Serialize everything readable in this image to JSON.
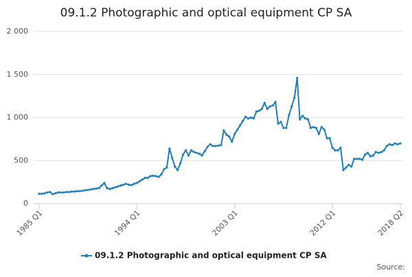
{
  "chart_data": {
    "type": "line",
    "title": "09.1.2 Photographic and optical equipment CP SA",
    "source": "Source:",
    "categories": [
      "1985 Q1",
      null,
      null,
      null,
      null,
      null,
      null,
      null,
      null,
      null,
      null,
      null,
      null,
      null,
      null,
      null,
      null,
      null,
      null,
      null,
      null,
      null,
      null,
      null,
      null,
      null,
      null,
      null,
      null,
      null,
      null,
      null,
      null,
      null,
      null,
      null,
      "1994 Q1",
      null,
      null,
      null,
      null,
      null,
      null,
      null,
      null,
      null,
      null,
      null,
      null,
      null,
      null,
      null,
      null,
      null,
      null,
      null,
      null,
      null,
      null,
      null,
      null,
      null,
      null,
      null,
      null,
      null,
      null,
      null,
      null,
      null,
      null,
      null,
      "2003 Q1",
      null,
      null,
      null,
      null,
      null,
      null,
      null,
      null,
      null,
      null,
      null,
      null,
      null,
      null,
      null,
      null,
      null,
      null,
      null,
      null,
      null,
      null,
      null,
      null,
      null,
      null,
      null,
      null,
      null,
      null,
      null,
      null,
      null,
      null,
      null,
      "2012 Q1",
      null,
      null,
      null,
      null,
      null,
      null,
      null,
      null,
      null,
      null,
      null,
      null,
      null,
      null,
      null,
      null,
      null,
      null,
      null,
      null,
      null,
      null,
      null,
      null,
      "2018 Q2"
    ],
    "series": [
      {
        "name": "09.1.2 Photographic and optical equipment CP SA",
        "color": "#1f7db8",
        "values": [
          115,
          115,
          120,
          130,
          135,
          110,
          120,
          130,
          130,
          130,
          135,
          135,
          140,
          140,
          145,
          145,
          150,
          155,
          160,
          165,
          170,
          175,
          180,
          210,
          240,
          180,
          170,
          180,
          190,
          200,
          210,
          220,
          230,
          220,
          215,
          230,
          240,
          260,
          280,
          300,
          300,
          320,
          325,
          320,
          310,
          340,
          400,
          420,
          640,
          530,
          430,
          390,
          470,
          570,
          620,
          560,
          620,
          600,
          590,
          580,
          560,
          610,
          660,
          690,
          670,
          670,
          675,
          680,
          850,
          800,
          780,
          720,
          810,
          860,
          910,
          960,
          1010,
          990,
          1000,
          990,
          1070,
          1080,
          1100,
          1170,
          1100,
          1130,
          1140,
          1180,
          930,
          950,
          880,
          880,
          1030,
          1130,
          1230,
          1460,
          980,
          1020,
          990,
          980,
          880,
          890,
          880,
          810,
          890,
          860,
          760,
          760,
          650,
          620,
          620,
          650,
          390,
          420,
          450,
          430,
          520,
          520,
          520,
          510,
          570,
          590,
          550,
          560,
          600,
          590,
          600,
          620,
          670,
          690,
          680,
          700,
          690,
          700
        ]
      }
    ],
    "ylim": [
      0,
      2000
    ],
    "yticks": [
      {
        "value": 0,
        "label": "0"
      },
      {
        "value": 500,
        "label": "500"
      },
      {
        "value": 1000,
        "label": "1 000"
      },
      {
        "value": 1500,
        "label": "1 500"
      },
      {
        "value": 2000,
        "label": "2 000"
      }
    ],
    "grid": true
  }
}
